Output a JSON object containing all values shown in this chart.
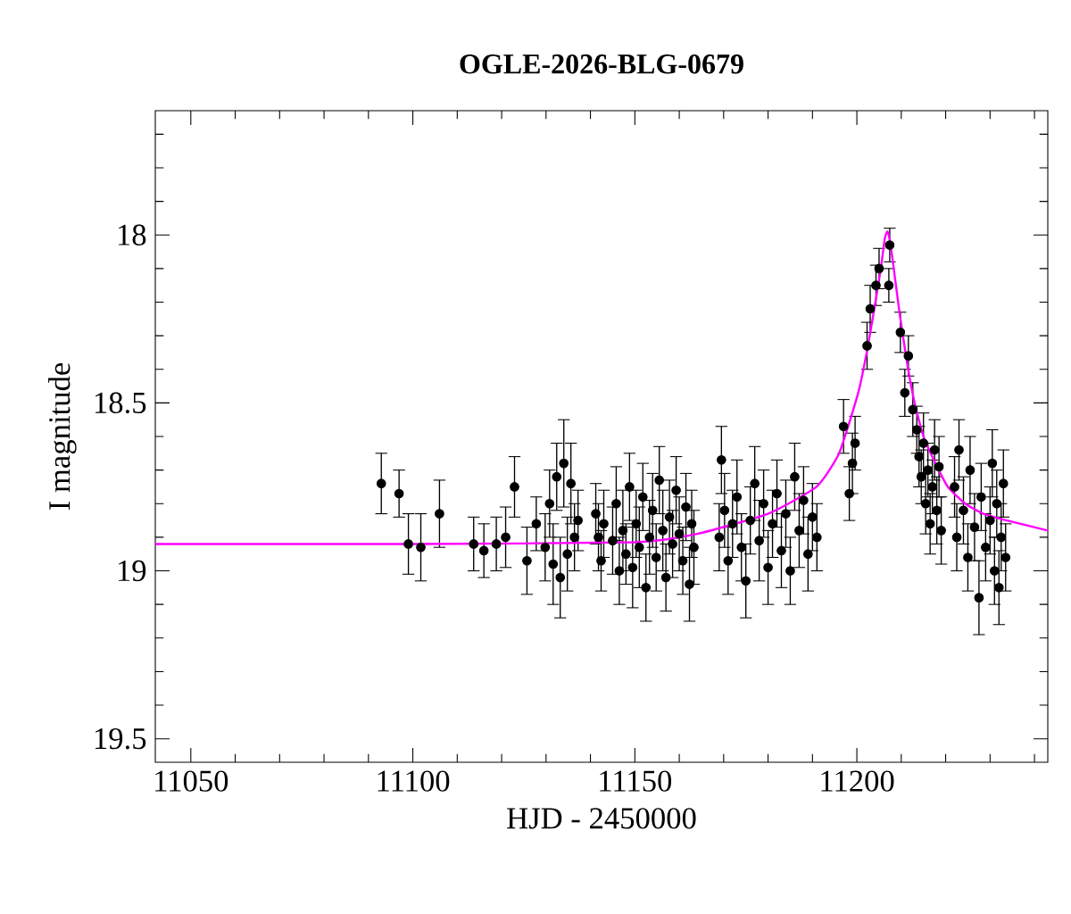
{
  "chart_data": {
    "type": "scatter",
    "title": "OGLE-2026-BLG-0679",
    "xlabel": "HJD - 2450000",
    "ylabel": "I magnitude",
    "xlim": [
      11042,
      11243
    ],
    "ylim": [
      19.57,
      17.63
    ],
    "xticks": [
      11050,
      {
        "value": 11060,
        "label": null
      },
      {
        "value": 11070,
        "label": null
      },
      {
        "value": 11080,
        "label": null
      },
      {
        "value": 11090,
        "label": null
      },
      11100,
      {
        "value": 11110,
        "label": null
      },
      {
        "value": 11120,
        "label": null
      },
      {
        "value": 11130,
        "label": null
      },
      {
        "value": 11140,
        "label": null
      },
      11150,
      {
        "value": 11160,
        "label": null
      },
      {
        "value": 11170,
        "label": null
      },
      {
        "value": 11180,
        "label": null
      },
      {
        "value": 11190,
        "label": null
      },
      11200,
      {
        "value": 11210,
        "label": null
      },
      {
        "value": 11220,
        "label": null
      },
      {
        "value": 11230,
        "label": null
      },
      {
        "value": 11240,
        "label": null
      }
    ],
    "yticks": [
      {
        "value": 17.7,
        "label": null
      },
      {
        "value": 17.8,
        "label": null
      },
      {
        "value": 17.9,
        "label": null
      },
      18,
      {
        "value": 18.1,
        "label": null
      },
      {
        "value": 18.2,
        "label": null
      },
      {
        "value": 18.3,
        "label": null
      },
      {
        "value": 18.4,
        "label": null
      },
      18.5,
      {
        "value": 18.6,
        "label": null
      },
      {
        "value": 18.7,
        "label": null
      },
      {
        "value": 18.8,
        "label": null
      },
      {
        "value": 18.9,
        "label": null
      },
      19,
      {
        "value": 19.1,
        "label": null
      },
      {
        "value": 19.2,
        "label": null
      },
      {
        "value": 19.3,
        "label": null
      },
      {
        "value": 19.4,
        "label": null
      },
      19.5
    ],
    "grid": false,
    "series": [
      {
        "color": "#000000",
        "marker": "circle",
        "x": [
          11092.9,
          11096.9,
          11099.0,
          11101.8,
          11106.0,
          11113.7,
          11116.0,
          11118.8,
          11120.9,
          11122.9,
          11125.7,
          11127.8,
          11129.8,
          11130.8,
          11131.6,
          11132.4,
          11133.2,
          11134.0,
          11134.8,
          11135.6,
          11136.4,
          11137.2,
          11141.2,
          11141.8,
          11142.4,
          11143.0,
          11145.0,
          11145.8,
          11146.5,
          11147.3,
          11148.0,
          11148.8,
          11149.5,
          11150.3,
          11151.0,
          11151.8,
          11152.5,
          11153.3,
          11154.0,
          11154.8,
          11155.5,
          11156.3,
          11157.0,
          11157.8,
          11158.5,
          11159.3,
          11160.0,
          11160.8,
          11161.5,
          11162.3,
          11162.8,
          11163.3,
          11169.0,
          11169.5,
          11170.2,
          11171.0,
          11172.0,
          11173.0,
          11174.0,
          11175.0,
          11176.0,
          11177.0,
          11178.0,
          11179.0,
          11180.0,
          11181.0,
          11182.0,
          11183.0,
          11184.0,
          11185.0,
          11186.0,
          11187.0,
          11188.0,
          11189.0,
          11190.0,
          11191.0,
          11197.0,
          11198.3,
          11199.0,
          11199.6,
          11202.3,
          11203.0,
          11204.3,
          11205.0,
          11207.2,
          11207.4,
          11209.8,
          11210.8,
          11211.6,
          11212.6,
          11213.5,
          11214.0,
          11214.5,
          11215.0,
          11215.5,
          11216.0,
          11216.5,
          11217.0,
          11217.5,
          11218.0,
          11218.5,
          11219.0,
          11222.0,
          11222.5,
          11223.0,
          11224.0,
          11225.0,
          11225.5,
          11226.5,
          11227.5,
          11228.0,
          11229.0,
          11230.0,
          11230.5,
          11231.0,
          11231.5,
          11232.0,
          11232.5,
          11233.0,
          11233.5
        ],
        "values": [
          18.74,
          18.77,
          18.92,
          18.93,
          18.83,
          18.92,
          18.94,
          18.92,
          18.9,
          18.75,
          18.97,
          18.86,
          18.93,
          18.8,
          18.98,
          18.72,
          19.02,
          18.68,
          18.95,
          18.74,
          18.9,
          18.85,
          18.83,
          18.9,
          18.97,
          18.86,
          18.91,
          18.8,
          19.0,
          18.88,
          18.95,
          18.75,
          18.99,
          18.86,
          18.93,
          18.78,
          19.05,
          18.9,
          18.82,
          18.96,
          18.73,
          18.88,
          19.02,
          18.84,
          18.92,
          18.76,
          18.89,
          18.97,
          18.81,
          19.04,
          18.86,
          18.93,
          18.9,
          18.67,
          18.82,
          18.97,
          18.86,
          18.78,
          18.93,
          19.03,
          18.85,
          18.74,
          18.91,
          18.8,
          18.99,
          18.86,
          18.77,
          18.94,
          18.83,
          19.0,
          18.72,
          18.88,
          18.79,
          18.95,
          18.84,
          18.9,
          18.57,
          18.77,
          18.68,
          18.62,
          18.33,
          18.22,
          18.15,
          18.1,
          18.15,
          18.03,
          18.29,
          18.47,
          18.36,
          18.52,
          18.58,
          18.66,
          18.72,
          18.62,
          18.8,
          18.7,
          18.86,
          18.75,
          18.64,
          18.82,
          18.69,
          18.88,
          18.75,
          18.9,
          18.64,
          18.82,
          18.96,
          18.7,
          18.87,
          19.08,
          18.78,
          18.93,
          18.85,
          18.68,
          19.0,
          18.8,
          19.05,
          18.9,
          18.74,
          18.96
        ],
        "errors": [
          0.09,
          0.07,
          0.09,
          0.1,
          0.1,
          0.08,
          0.08,
          0.08,
          0.09,
          0.09,
          0.1,
          0.08,
          0.1,
          0.1,
          0.12,
          0.1,
          0.12,
          0.13,
          0.11,
          0.12,
          0.1,
          0.09,
          0.09,
          0.1,
          0.09,
          0.1,
          0.1,
          0.11,
          0.1,
          0.12,
          0.09,
          0.1,
          0.12,
          0.1,
          0.12,
          0.1,
          0.1,
          0.11,
          0.11,
          0.1,
          0.1,
          0.12,
          0.1,
          0.11,
          0.1,
          0.1,
          0.11,
          0.1,
          0.1,
          0.11,
          0.1,
          0.11,
          0.1,
          0.1,
          0.11,
          0.1,
          0.1,
          0.11,
          0.1,
          0.11,
          0.1,
          0.11,
          0.12,
          0.1,
          0.11,
          0.1,
          0.1,
          0.11,
          0.1,
          0.1,
          0.1,
          0.11,
          0.1,
          0.11,
          0.1,
          0.1,
          0.08,
          0.08,
          0.09,
          0.08,
          0.07,
          0.07,
          0.06,
          0.06,
          0.05,
          0.05,
          0.06,
          0.07,
          0.06,
          0.08,
          0.07,
          0.09,
          0.08,
          0.09,
          0.09,
          0.08,
          0.09,
          0.08,
          0.09,
          0.1,
          0.09,
          0.1,
          0.09,
          0.1,
          0.09,
          0.1,
          0.1,
          0.1,
          0.1,
          0.11,
          0.1,
          0.1,
          0.1,
          0.1,
          0.1,
          0.1,
          0.11,
          0.1,
          0.1,
          0.1
        ]
      },
      {
        "type": "line",
        "color": "#ff00ff",
        "marker": "none",
        "x": [
          11042,
          11100,
          11150,
          11164,
          11180,
          11190.9,
          11196,
          11200.3,
          11202.5,
          11204.3,
          11205.5,
          11206.3,
          11206.9,
          11207.6,
          11208.6,
          11209.7,
          11211.3,
          11213,
          11215,
          11217.7,
          11220.5,
          11224.4,
          11228.5,
          11233.8,
          11243
        ],
        "values": [
          18.92,
          18.92,
          18.915,
          18.89,
          18.83,
          18.75,
          18.65,
          18.47,
          18.33,
          18.19,
          18.09,
          18.01,
          17.99,
          18.03,
          18.13,
          18.24,
          18.38,
          18.5,
          18.6,
          18.68,
          18.75,
          18.8,
          18.83,
          18.85,
          18.88
        ]
      }
    ]
  }
}
